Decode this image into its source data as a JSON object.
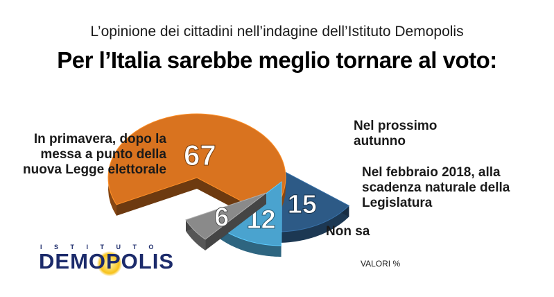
{
  "header": {
    "subtitle": "L’opinione dei cittadini nell’indagine dell’Istituto Demopolis",
    "title": "Per l’Italia sarebbe meglio tornare al voto:"
  },
  "chart_data": {
    "type": "pie",
    "title": "Per l’Italia sarebbe meglio tornare al voto:",
    "unit": "%",
    "slices": [
      {
        "label": "In primavera, dopo la messa a punto della nuova Legge elettorale",
        "value": 67,
        "color": "#d9731f"
      },
      {
        "label": "Nel prossimo autunno",
        "value": 15,
        "color": "#2d5a86"
      },
      {
        "label": "Nel febbraio 2018, alla scadenza naturale della Legislatura",
        "value": 12,
        "color": "#4aa3cf"
      },
      {
        "label": "Non sa",
        "value": 6,
        "color": "#8a8a8a"
      }
    ]
  },
  "labels": {
    "primavera": "In primavera, dopo la messa a punto della nuova Legge elettorale",
    "autunno": "Nel prossimo autunno",
    "febbraio": "Nel febbraio 2018, alla scadenza naturale della Legislatura",
    "nonsa": "Non sa"
  },
  "logo": {
    "top": "ISTITUTO",
    "main": "DEMOPOLIS"
  },
  "footer": {
    "note": "VALORI %"
  }
}
